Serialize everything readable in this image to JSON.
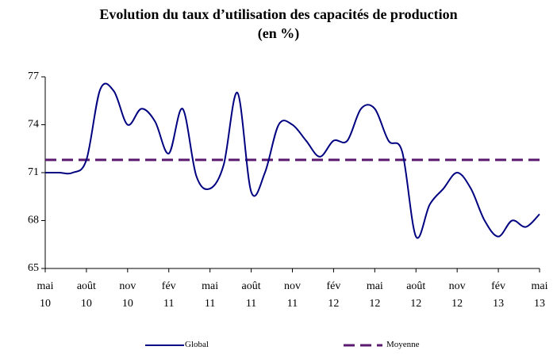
{
  "chart_data": {
    "type": "line",
    "title": "Evolution du taux d’utilisation des capacités de production",
    "subtitle": "(en %)",
    "categories": [
      "mai 10",
      null,
      null,
      "août 10",
      null,
      null,
      "nov 10",
      null,
      null,
      "fév 11",
      null,
      null,
      "mai 11",
      null,
      null,
      "août 11",
      null,
      null,
      "nov 11",
      null,
      null,
      "fév 12",
      null,
      null,
      "mai 12",
      null,
      null,
      "août 12",
      null,
      null,
      "nov 12",
      null,
      null,
      "fév 13",
      null,
      null,
      "mai 13"
    ],
    "series": [
      {
        "name": "Global",
        "color": "#000080",
        "values": [
          71.0,
          71.0,
          71.0,
          71.8,
          76.2,
          76.1,
          74.0,
          75.0,
          74.2,
          72.2,
          75.0,
          70.8,
          70.0,
          71.5,
          76.0,
          69.8,
          71.0,
          74.0,
          74.0,
          73.0,
          72.0,
          73.0,
          73.0,
          75.0,
          75.0,
          73.0,
          72.3,
          67.0,
          69.0,
          70.0,
          71.0,
          70.0,
          68.0,
          67.0,
          68.0,
          67.6,
          68.4
        ]
      }
    ],
    "reference_line": {
      "name": "Moyenne",
      "color": "#5a1a6e",
      "value": 71.8,
      "dashed": true
    },
    "ylim": [
      65,
      77
    ],
    "yticks": [
      65,
      68,
      71,
      74,
      77
    ],
    "grid": false
  }
}
